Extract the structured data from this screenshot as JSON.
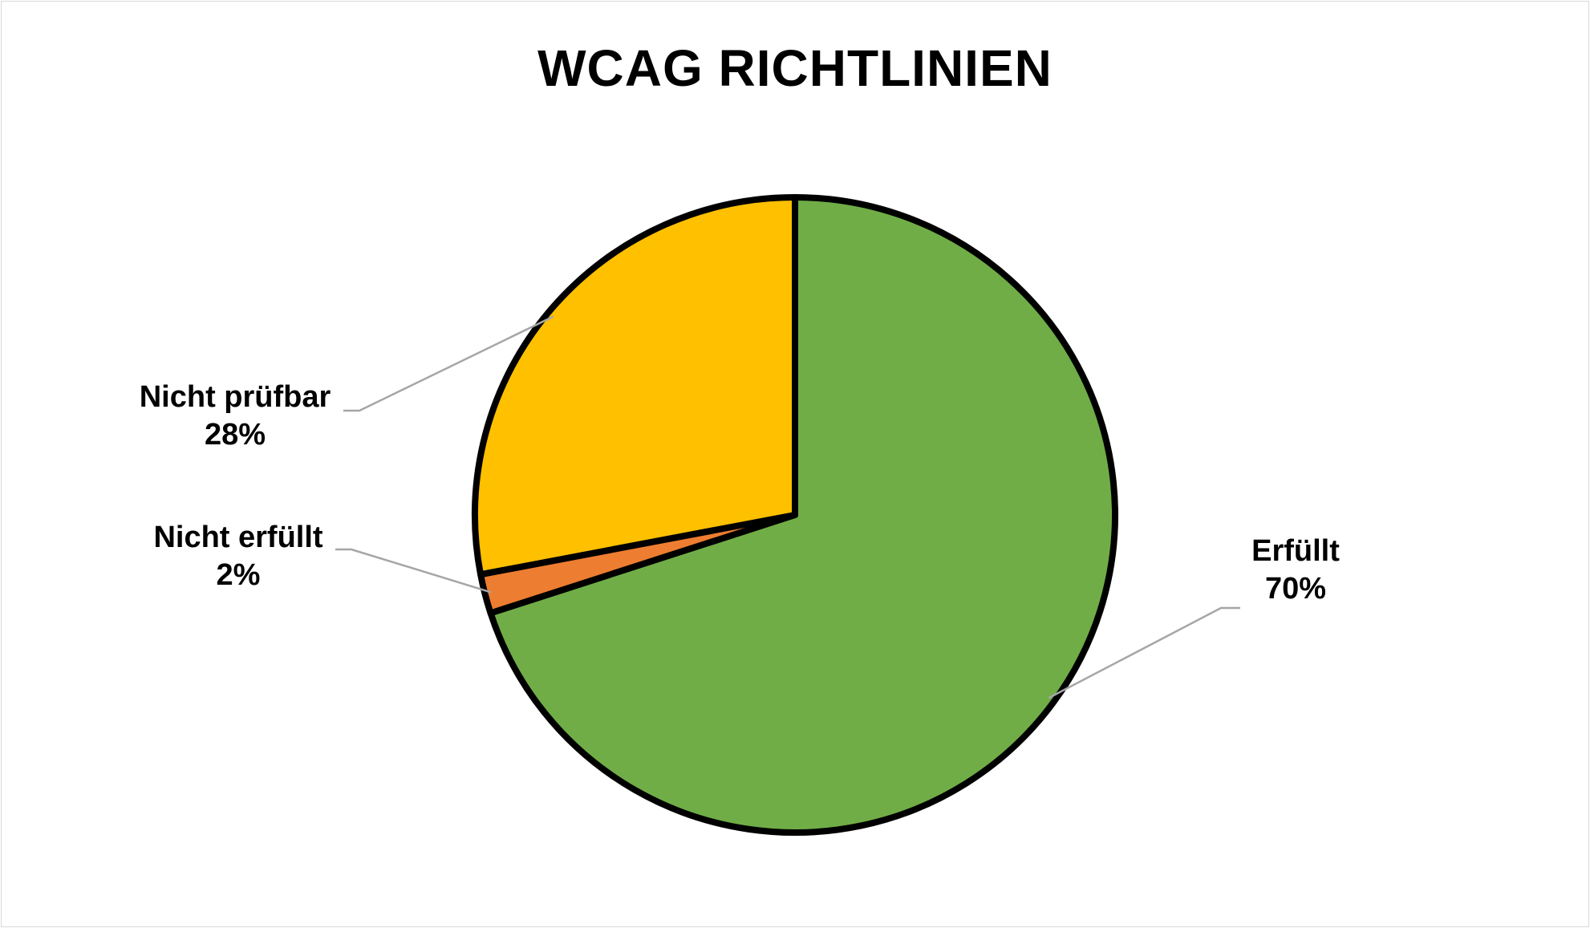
{
  "chart_data": {
    "type": "pie",
    "title": "WCAG RICHTLINIEN",
    "slices": [
      {
        "label": "Erfüllt",
        "value": 70,
        "percent_label": "70%",
        "color": "#70ad47"
      },
      {
        "label": "Nicht erfüllt",
        "value": 2,
        "percent_label": "2%",
        "color": "#ed7d31"
      },
      {
        "label": "Nicht prüfbar",
        "value": 28,
        "percent_label": "28%",
        "color": "#ffc000"
      }
    ],
    "start_angle_deg": 0,
    "direction": "clockwise",
    "slice_border_color": "#000000",
    "leader_line_color": "#a6a6a6",
    "legend": "none"
  }
}
